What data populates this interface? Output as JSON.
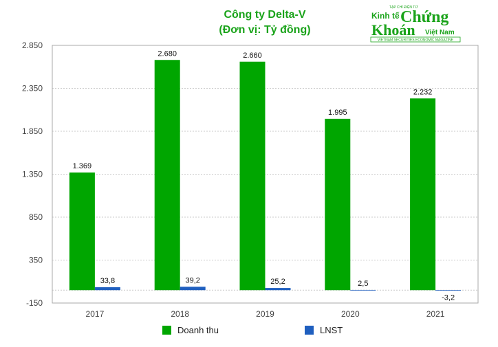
{
  "chart_data": {
    "type": "bar",
    "title": "Công ty Delta-V",
    "subtitle": "(Đơn vị: Tỷ đồng)",
    "categories": [
      "2017",
      "2018",
      "2019",
      "2020",
      "2021"
    ],
    "series": [
      {
        "name": "Doanh thu",
        "color": "#00a600",
        "values": [
          1369,
          2680,
          2660,
          1995,
          2232
        ],
        "labels": [
          "1.369",
          "2.680",
          "2.660",
          "1.995",
          "2.232"
        ]
      },
      {
        "name": "LNST",
        "color": "#1f5fbf",
        "values": [
          33.8,
          39.2,
          25.2,
          2.5,
          -3.2
        ],
        "labels": [
          "33,8",
          "39,2",
          "25,2",
          "2,5",
          "-3,2"
        ]
      }
    ],
    "yticks": [
      -150,
      350,
      850,
      1350,
      1850,
      2350,
      2850
    ],
    "ytick_labels": [
      "-150",
      "350",
      "850",
      "1.350",
      "1.850",
      "2.350",
      "2.850"
    ],
    "ylim": [
      -150,
      2850
    ],
    "grid": "horizontal dotted",
    "legend_position": "bottom"
  },
  "logo": {
    "top": "TẠP CHÍ ĐIỆN TỬ",
    "line1a": "Kinh tế",
    "line1b": "Chứng",
    "line2a": "Khoán",
    "line2b": "Việt Nam",
    "tagline": "VIETNAM SECURITIES ECONOMIC MAGAZINE"
  }
}
